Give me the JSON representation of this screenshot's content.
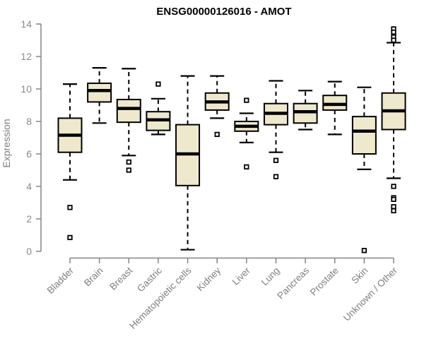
{
  "title": "ENSG00000126016 - AMOT",
  "colors": {
    "box_fill": "#EEE8CD",
    "box_stroke": "#000000",
    "median": "#000000",
    "whisker": "#000000",
    "outlier_stroke": "#000000",
    "outlier_fill": "#FFFFFF",
    "axis": "#858585",
    "tick_label": "#7f7f7f",
    "title_color": "#000000",
    "background": "#FFFFFF"
  },
  "chart_data": {
    "type": "boxplot",
    "title": "ENSG00000126016 - AMOT",
    "xlabel": "",
    "ylabel": "Expression",
    "ylim": [
      0,
      14
    ],
    "yticks": [
      0,
      2,
      4,
      6,
      8,
      10,
      12,
      14
    ],
    "grid": false,
    "legend": "none",
    "categories": [
      "Bladder",
      "Brain",
      "Breast",
      "Gastric",
      "Hematopoietic cells",
      "Kidney",
      "Liver",
      "Lung",
      "Pancreas",
      "Prostate",
      "Skin",
      "Unknown / Other"
    ],
    "series": [
      {
        "name": "Bladder",
        "whisker_low": 4.4,
        "q1": 6.1,
        "median": 7.15,
        "q3": 8.2,
        "whisker_high": 10.3,
        "outliers": [
          2.7,
          0.85
        ]
      },
      {
        "name": "Brain",
        "whisker_low": 7.9,
        "q1": 9.2,
        "median": 9.9,
        "q3": 10.35,
        "whisker_high": 11.3,
        "outliers": []
      },
      {
        "name": "Breast",
        "whisker_low": 5.9,
        "q1": 7.95,
        "median": 8.8,
        "q3": 9.35,
        "whisker_high": 11.25,
        "outliers": [
          5.5,
          5.0
        ]
      },
      {
        "name": "Gastric",
        "whisker_low": 7.2,
        "q1": 7.45,
        "median": 8.1,
        "q3": 8.6,
        "whisker_high": 9.4,
        "outliers": [
          10.3
        ]
      },
      {
        "name": "Hematopoietic cells",
        "whisker_low": 0.1,
        "q1": 4.05,
        "median": 6.0,
        "q3": 7.8,
        "whisker_high": 10.8,
        "outliers": []
      },
      {
        "name": "Kidney",
        "whisker_low": 8.2,
        "q1": 8.7,
        "median": 9.2,
        "q3": 9.75,
        "whisker_high": 10.8,
        "outliers": [
          7.2
        ]
      },
      {
        "name": "Liver",
        "whisker_low": 6.7,
        "q1": 7.4,
        "median": 7.7,
        "q3": 8.0,
        "whisker_high": 8.5,
        "outliers": [
          9.3,
          5.2
        ]
      },
      {
        "name": "Lung",
        "whisker_low": 6.1,
        "q1": 7.8,
        "median": 8.5,
        "q3": 9.1,
        "whisker_high": 10.5,
        "outliers": [
          5.6,
          4.6
        ]
      },
      {
        "name": "Pancreas",
        "whisker_low": 7.5,
        "q1": 7.9,
        "median": 8.6,
        "q3": 9.1,
        "whisker_high": 9.9,
        "outliers": []
      },
      {
        "name": "Prostate",
        "whisker_low": 7.2,
        "q1": 8.7,
        "median": 9.05,
        "q3": 9.6,
        "whisker_high": 10.45,
        "outliers": []
      },
      {
        "name": "Skin",
        "whisker_low": 5.05,
        "q1": 6.0,
        "median": 7.4,
        "q3": 8.3,
        "whisker_high": 10.1,
        "outliers": [
          0.05
        ]
      },
      {
        "name": "Unknown / Other",
        "whisker_low": 4.5,
        "q1": 7.5,
        "median": 8.65,
        "q3": 9.75,
        "whisker_high": 12.85,
        "outliers": [
          13.7,
          13.5,
          13.2,
          13.0,
          4.0,
          3.3,
          3.2,
          2.75,
          2.5
        ]
      }
    ]
  }
}
